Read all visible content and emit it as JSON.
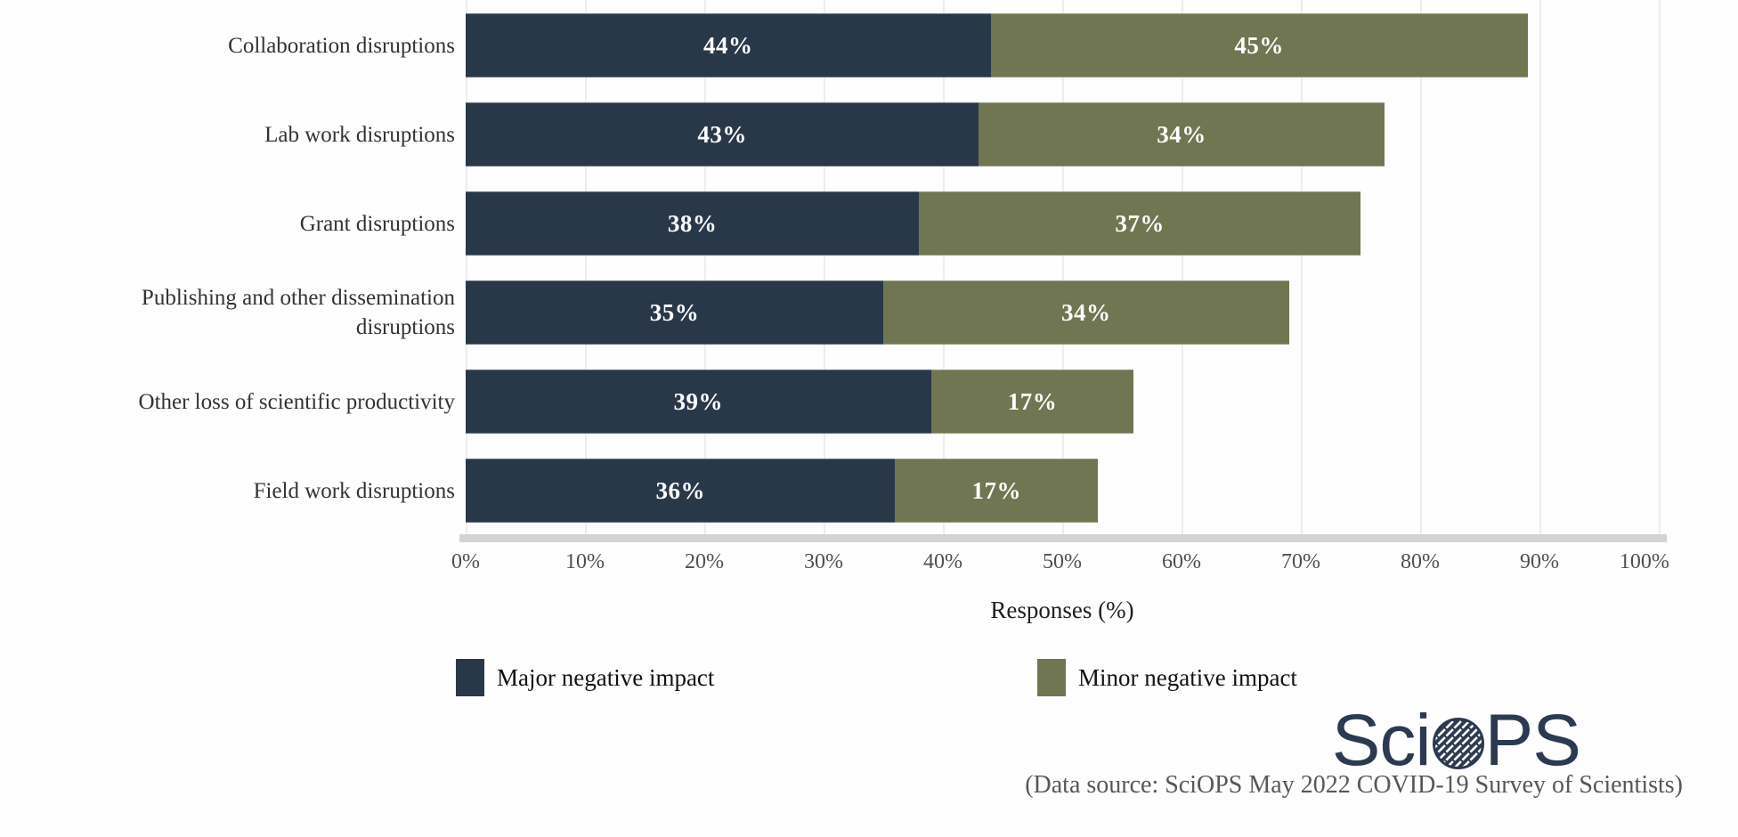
{
  "chart_data": {
    "type": "bar",
    "orientation": "horizontal",
    "stacked": true,
    "title": "",
    "xlabel": "Responses (%)",
    "xlim": [
      0,
      100
    ],
    "grid": true,
    "legend_position": "bottom",
    "tick_labels": [
      "0%",
      "10%",
      "20%",
      "30%",
      "40%",
      "50%",
      "60%",
      "70%",
      "80%",
      "90%",
      "100%"
    ],
    "categories": [
      "Collaboration disruptions",
      "Lab work disruptions",
      "Grant disruptions",
      "Publishing and other dissemination disruptions",
      "Other loss of scientific productivity",
      "Field work disruptions"
    ],
    "series": [
      {
        "name": "Major negative impact",
        "color": "#293849",
        "values": [
          44,
          43,
          38,
          35,
          39,
          36
        ]
      },
      {
        "name": "Minor negative impact",
        "color": "#6f7651",
        "values": [
          45,
          34,
          37,
          34,
          17,
          17
        ]
      }
    ]
  },
  "footer": {
    "logo_prefix": "Sci",
    "logo_suffix": "PS",
    "logo_o_icon": "hatched-globe-icon",
    "caption": "(Data source: SciOPS May 2022 COVID-19 Survey of Scientists)"
  },
  "colors": {
    "major": "#293849",
    "minor": "#6f7651",
    "gridline": "#ededed",
    "baseline": "#d3d3d3",
    "logo": "#2b3a50"
  }
}
